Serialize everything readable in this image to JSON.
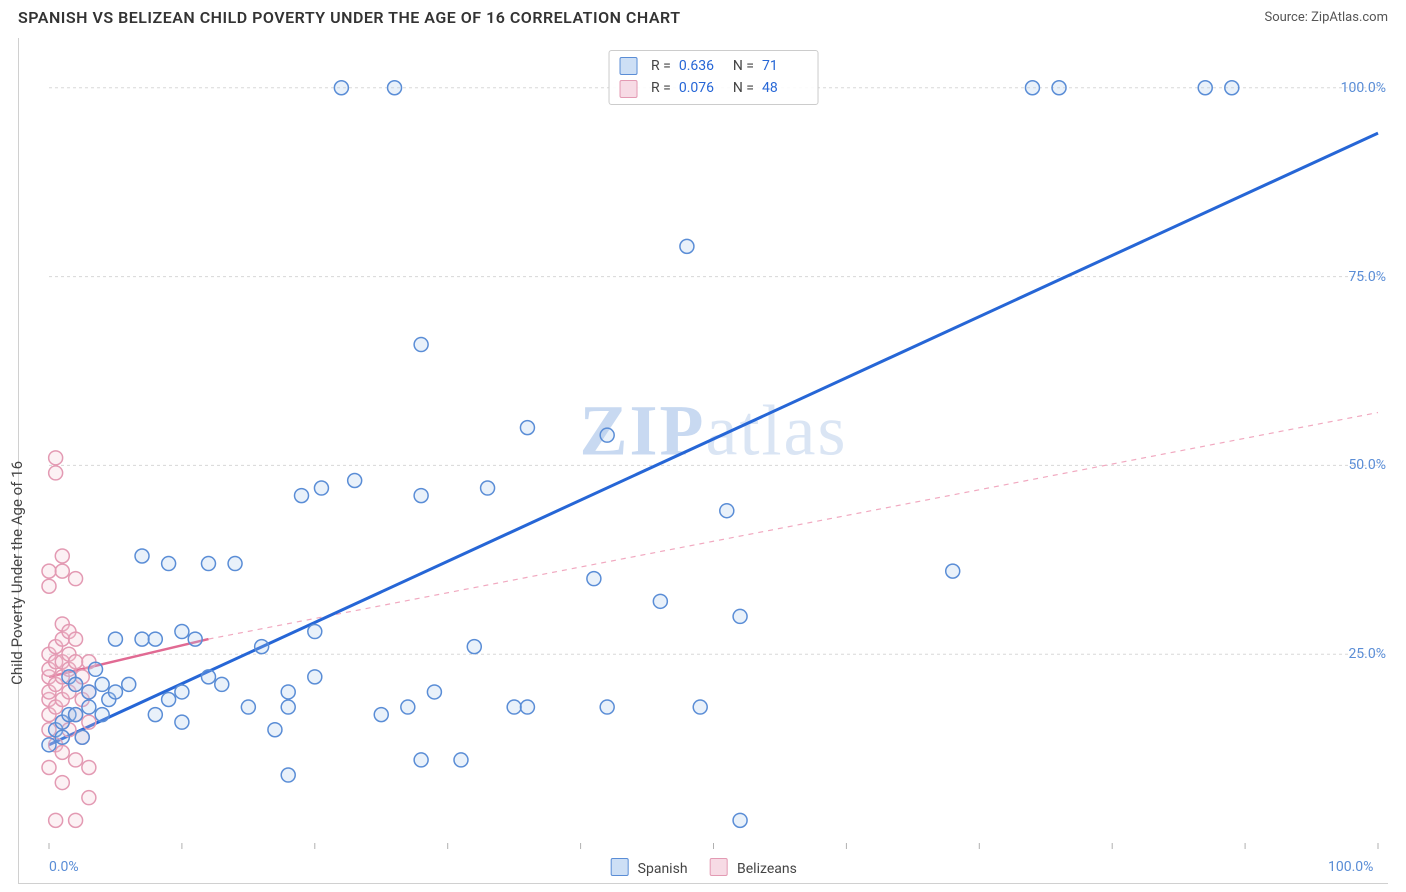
{
  "title": "SPANISH VS BELIZEAN CHILD POVERTY UNDER THE AGE OF 16 CORRELATION CHART",
  "source": "Source: ZipAtlas.com",
  "ylabel": "Child Poverty Under the Age of 16",
  "watermark_a": "ZIP",
  "watermark_b": "atlas",
  "chart": {
    "type": "scatter",
    "xlim": [
      0,
      100
    ],
    "ylim": [
      0,
      105
    ],
    "x_ticks": [
      0,
      10,
      20,
      30,
      40,
      50,
      60,
      70,
      80,
      90,
      100
    ],
    "y_gridlines": [
      25,
      50,
      75,
      100
    ],
    "x_labels": [
      {
        "v": 0,
        "t": "0.0%"
      },
      {
        "v": 100,
        "t": "100.0%"
      }
    ],
    "y_labels": [
      {
        "v": 25,
        "t": "25.0%"
      },
      {
        "v": 50,
        "t": "50.0%"
      },
      {
        "v": 75,
        "t": "75.0%"
      },
      {
        "v": 100,
        "t": "100.0%"
      }
    ],
    "background_color": "#ffffff",
    "grid_color": "#d8d8d8",
    "grid_dash": "3,3",
    "marker_radius": 7,
    "marker_stroke_width": 1.5,
    "marker_fill_opacity": 0.25,
    "series": [
      {
        "name": "Spanish",
        "color_stroke": "#5a8dd6",
        "color_fill": "#a9c6ed",
        "R": "0.636",
        "N": "71",
        "trend": {
          "x1": 0,
          "y1": 13,
          "x2": 100,
          "y2": 94,
          "width": 3,
          "dash": null,
          "color": "#2666d6"
        },
        "points": [
          [
            0,
            13
          ],
          [
            0.5,
            15
          ],
          [
            1,
            14
          ],
          [
            1,
            16
          ],
          [
            1.5,
            17
          ],
          [
            1.5,
            22
          ],
          [
            2,
            17
          ],
          [
            2,
            21
          ],
          [
            2.5,
            14
          ],
          [
            3,
            18
          ],
          [
            3,
            20
          ],
          [
            3.5,
            23
          ],
          [
            4,
            17
          ],
          [
            4,
            21
          ],
          [
            4.5,
            19
          ],
          [
            5,
            20
          ],
          [
            5,
            27
          ],
          [
            6,
            21
          ],
          [
            7,
            27
          ],
          [
            7,
            38
          ],
          [
            8,
            17
          ],
          [
            8,
            27
          ],
          [
            9,
            19
          ],
          [
            9,
            37
          ],
          [
            10,
            16
          ],
          [
            10,
            20
          ],
          [
            10,
            28
          ],
          [
            11,
            27
          ],
          [
            12,
            22
          ],
          [
            12,
            37
          ],
          [
            13,
            21
          ],
          [
            14,
            37
          ],
          [
            15,
            18
          ],
          [
            16,
            26
          ],
          [
            17,
            15
          ],
          [
            18,
            9
          ],
          [
            18,
            18
          ],
          [
            18,
            20
          ],
          [
            19,
            46
          ],
          [
            20,
            22
          ],
          [
            20,
            28
          ],
          [
            20.5,
            47
          ],
          [
            22,
            100
          ],
          [
            23,
            48
          ],
          [
            25,
            17
          ],
          [
            26,
            100
          ],
          [
            27,
            18
          ],
          [
            28,
            11
          ],
          [
            28,
            46
          ],
          [
            28,
            66
          ],
          [
            29,
            20
          ],
          [
            31,
            11
          ],
          [
            32,
            26
          ],
          [
            33,
            47
          ],
          [
            35,
            18
          ],
          [
            36,
            18
          ],
          [
            36,
            55
          ],
          [
            41,
            35
          ],
          [
            42,
            54
          ],
          [
            42,
            18
          ],
          [
            46,
            32
          ],
          [
            48,
            79
          ],
          [
            49,
            18
          ],
          [
            51,
            44
          ],
          [
            52,
            30
          ],
          [
            52,
            3
          ],
          [
            68,
            36
          ],
          [
            74,
            100
          ],
          [
            76,
            100
          ],
          [
            87,
            100
          ],
          [
            89,
            100
          ]
        ]
      },
      {
        "name": "Belizeans",
        "color_stroke": "#e39ab3",
        "color_fill": "#f4c6d5",
        "R": "0.076",
        "N": "48",
        "trend_solid": {
          "x1": 0,
          "y1": 22,
          "x2": 12,
          "y2": 27,
          "width": 2.5,
          "color": "#e16a93"
        },
        "trend_dash": {
          "x1": 12,
          "y1": 27,
          "x2": 100,
          "y2": 57,
          "width": 1.2,
          "dash": "5,5",
          "color": "#f1a9c0"
        },
        "points": [
          [
            0,
            10
          ],
          [
            0,
            15
          ],
          [
            0,
            17
          ],
          [
            0,
            19
          ],
          [
            0,
            20
          ],
          [
            0,
            22
          ],
          [
            0,
            23
          ],
          [
            0,
            25
          ],
          [
            0,
            34
          ],
          [
            0,
            36
          ],
          [
            0.5,
            13
          ],
          [
            0.5,
            18
          ],
          [
            0.5,
            21
          ],
          [
            0.5,
            24
          ],
          [
            0.5,
            26
          ],
          [
            0.5,
            49
          ],
          [
            0.5,
            51
          ],
          [
            1,
            12
          ],
          [
            1,
            16
          ],
          [
            1,
            19
          ],
          [
            1,
            22
          ],
          [
            1,
            24
          ],
          [
            1,
            27
          ],
          [
            1,
            29
          ],
          [
            1,
            36
          ],
          [
            1,
            38
          ],
          [
            1.5,
            15
          ],
          [
            1.5,
            20
          ],
          [
            1.5,
            23
          ],
          [
            1.5,
            25
          ],
          [
            1.5,
            28
          ],
          [
            2,
            11
          ],
          [
            2,
            17
          ],
          [
            2,
            21
          ],
          [
            2,
            24
          ],
          [
            2,
            27
          ],
          [
            2,
            35
          ],
          [
            2.5,
            14
          ],
          [
            2.5,
            19
          ],
          [
            2.5,
            22
          ],
          [
            3,
            6
          ],
          [
            3,
            10
          ],
          [
            3,
            16
          ],
          [
            3,
            20
          ],
          [
            3,
            24
          ],
          [
            0.5,
            3
          ],
          [
            2,
            3
          ],
          [
            1,
            8
          ]
        ]
      }
    ],
    "legend": [
      {
        "label": "Spanish",
        "stroke": "#5a8dd6",
        "fill": "#a9c6ed"
      },
      {
        "label": "Belizeans",
        "stroke": "#e39ab3",
        "fill": "#f4c6d5"
      }
    ]
  }
}
